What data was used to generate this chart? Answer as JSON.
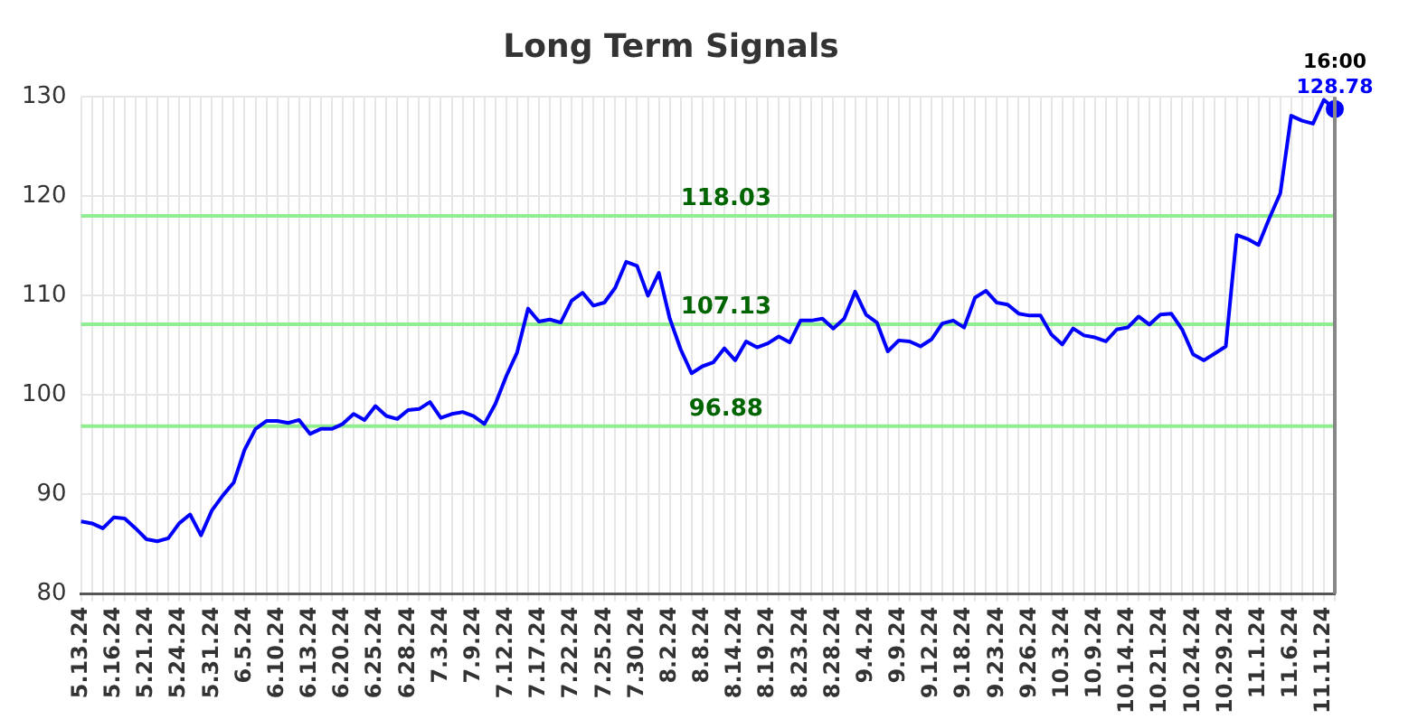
{
  "chart_data": {
    "type": "line",
    "title": "Long Term Signals",
    "categories": [
      "5.13.24",
      null,
      null,
      "5.16.24",
      null,
      null,
      "5.21.24",
      null,
      null,
      "5.24.24",
      null,
      null,
      "5.31.24",
      null,
      null,
      "6.5.24",
      null,
      null,
      "6.10.24",
      null,
      null,
      "6.13.24",
      null,
      null,
      "6.20.24",
      null,
      null,
      "6.25.24",
      null,
      null,
      "6.28.24",
      null,
      null,
      "7.3.24",
      null,
      null,
      "7.9.24",
      null,
      null,
      "7.12.24",
      null,
      null,
      "7.17.24",
      null,
      null,
      "7.22.24",
      null,
      null,
      "7.25.24",
      null,
      null,
      "7.30.24",
      null,
      null,
      "8.2.24",
      null,
      null,
      "8.8.24",
      null,
      null,
      "8.14.24",
      null,
      null,
      "8.19.24",
      null,
      null,
      "8.23.24",
      null,
      null,
      "8.28.24",
      null,
      null,
      "9.4.24",
      null,
      null,
      "9.9.24",
      null,
      null,
      "9.12.24",
      null,
      null,
      "9.18.24",
      null,
      null,
      "9.23.24",
      null,
      null,
      "9.26.24",
      null,
      null,
      "10.3.24",
      null,
      null,
      "10.9.24",
      null,
      null,
      "10.14.24",
      null,
      null,
      "10.21.24",
      null,
      null,
      "10.24.24",
      null,
      null,
      "10.29.24",
      null,
      null,
      "11.1.24",
      null,
      null,
      "11.6.24",
      null,
      null,
      "11.11.24",
      null
    ],
    "series": [
      {
        "color": "#0000ff",
        "values": [
          87.3,
          87.1,
          86.6,
          87.7,
          87.6,
          86.6,
          85.5,
          85.3,
          85.6,
          87.1,
          88.0,
          85.9,
          88.4,
          89.9,
          91.2,
          94.5,
          96.6,
          97.4,
          97.4,
          97.2,
          97.5,
          96.1,
          96.6,
          96.6,
          97.1,
          98.1,
          97.5,
          98.9,
          97.9,
          97.6,
          98.5,
          98.6,
          99.3,
          97.7,
          98.1,
          98.3,
          97.9,
          97.1,
          99.1,
          101.9,
          104.3,
          108.7,
          107.4,
          107.6,
          107.3,
          109.5,
          110.3,
          109.0,
          109.3,
          110.8,
          113.4,
          113.0,
          110.0,
          112.3,
          107.7,
          104.6,
          102.2,
          102.9,
          103.3,
          104.7,
          103.5,
          105.4,
          104.8,
          105.2,
          105.9,
          105.3,
          107.5,
          107.5,
          107.7,
          106.7,
          107.7,
          110.4,
          108.1,
          107.3,
          104.4,
          105.5,
          105.4,
          104.9,
          105.6,
          107.2,
          107.5,
          106.8,
          109.8,
          110.5,
          109.3,
          109.1,
          108.2,
          108.0,
          108.0,
          106.1,
          105.1,
          106.7,
          106.0,
          105.8,
          105.4,
          106.6,
          106.8,
          107.9,
          107.1,
          108.1,
          108.2,
          106.6,
          104.1,
          103.5,
          104.2,
          104.9,
          116.1,
          115.7,
          115.1,
          117.8,
          120.3,
          128.1,
          127.6,
          127.3,
          129.7,
          128.78
        ],
        "value_labels": [
          null,
          null,
          null,
          null,
          null,
          null,
          null,
          null,
          null,
          null,
          null,
          null,
          null,
          null,
          null,
          null,
          null,
          null,
          null,
          null,
          null,
          null,
          null,
          null,
          null,
          null,
          null,
          null,
          null,
          null,
          null,
          null,
          null,
          null,
          null,
          null,
          null,
          null,
          null,
          null,
          null,
          null,
          null,
          null,
          null,
          null,
          null,
          null,
          null,
          null,
          null,
          null,
          null,
          null,
          null,
          null,
          null,
          null,
          null,
          null,
          null,
          null,
          null,
          null,
          null,
          null,
          null,
          null,
          null,
          null,
          null,
          null,
          null,
          null,
          null,
          null,
          null,
          null,
          null,
          null,
          null,
          null,
          null,
          null,
          null,
          null,
          null,
          null,
          null,
          null,
          null,
          null,
          null,
          null,
          null,
          null,
          null,
          null,
          null,
          null,
          null,
          null,
          null,
          null,
          null,
          null,
          null,
          null,
          null,
          null,
          null,
          null,
          null,
          null,
          null,
          "128.78"
        ]
      }
    ],
    "ylim": [
      80,
      130
    ],
    "yticks": [
      80,
      90,
      100,
      110,
      120,
      130
    ],
    "grid": true,
    "legend": false,
    "marker": "none",
    "line_style": "solid",
    "ref_lines": [
      {
        "axis": "y",
        "value": 118.03,
        "label": "118.03",
        "color": "#90ee90"
      },
      {
        "axis": "y",
        "value": 107.13,
        "label": "107.13",
        "color": "#90ee90"
      },
      {
        "axis": "y",
        "value": 96.88,
        "label": "96.88",
        "color": "#90ee90"
      }
    ],
    "annotations": [
      "16:00"
    ]
  }
}
